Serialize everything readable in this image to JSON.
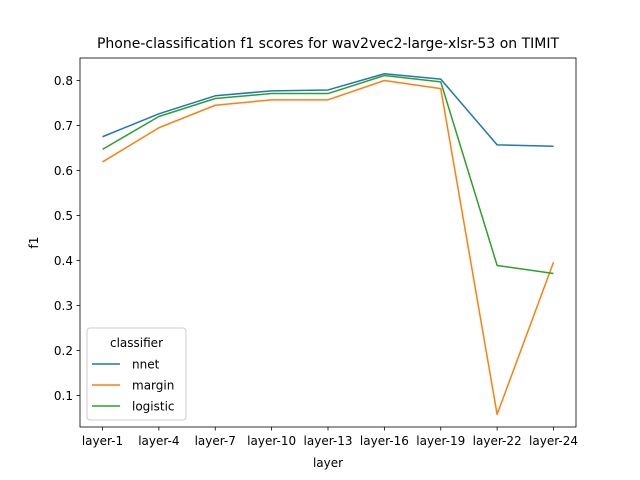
{
  "chart_data": {
    "type": "line",
    "title": "Phone-classification f1 scores for wav2vec2-large-xlsr-53 on TIMIT",
    "xlabel": "layer",
    "ylabel": "f1",
    "categories": [
      "layer-1",
      "layer-4",
      "layer-7",
      "layer-10",
      "layer-13",
      "layer-16",
      "layer-19",
      "layer-22",
      "layer-24"
    ],
    "ylim": [
      0.03,
      0.85
    ],
    "yticks": [
      0.1,
      0.2,
      0.3,
      0.4,
      0.5,
      0.6,
      0.7,
      0.8
    ],
    "grid": false,
    "legend": {
      "title": "classifier",
      "placement": "lower-left"
    },
    "series": [
      {
        "name": "nnet",
        "color": "#1f77b4",
        "values": [
          0.675,
          0.726,
          0.766,
          0.777,
          0.779,
          0.815,
          0.803,
          0.657,
          0.654
        ]
      },
      {
        "name": "margin",
        "color": "#ff7f0e",
        "values": [
          0.619,
          0.695,
          0.745,
          0.757,
          0.757,
          0.8,
          0.782,
          0.058,
          0.396
        ]
      },
      {
        "name": "logistic",
        "color": "#2ca02c",
        "values": [
          0.647,
          0.72,
          0.76,
          0.771,
          0.771,
          0.811,
          0.797,
          0.389,
          0.371
        ]
      }
    ]
  }
}
